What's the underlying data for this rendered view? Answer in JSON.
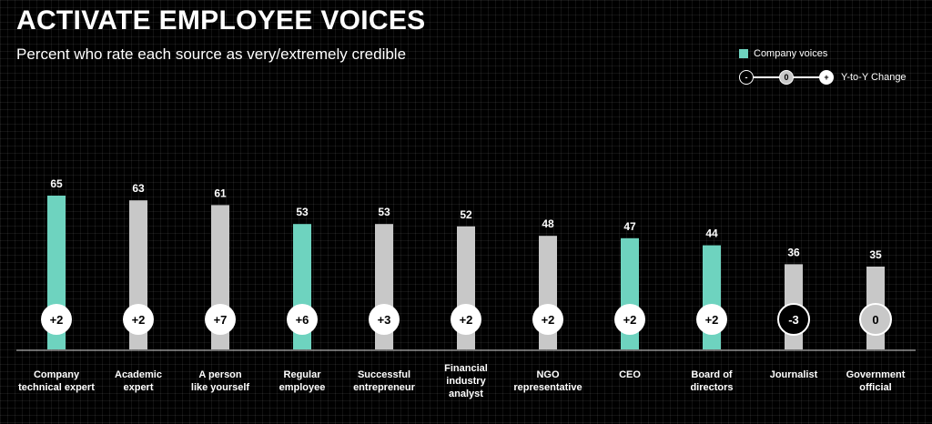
{
  "title": "ACTIVATE EMPLOYEE VOICES",
  "subtitle": "Percent who rate each source as very/extremely credible",
  "legend": {
    "company_label": "Company voices",
    "company_color": "#6ed3bf",
    "other_color": "#c8c8c8",
    "yoy_label": "Y-to-Y Change",
    "yoy_minus": "-",
    "yoy_zero": "0",
    "yoy_plus": "+"
  },
  "chart_data": {
    "type": "bar",
    "title": "ACTIVATE EMPLOYEE VOICES",
    "subtitle": "Percent who rate each source as very/extremely credible",
    "categories": [
      "Company\ntechnical expert",
      "Academic\nexpert",
      "A person\nlike yourself",
      "Regular\nemployee",
      "Successful\nentrepreneur",
      "Financial\nindustry\nanalyst",
      "NGO\nrepresentative",
      "CEO",
      "Board of\ndirectors",
      "Journalist",
      "Government\nofficial"
    ],
    "values": [
      65,
      63,
      61,
      53,
      53,
      52,
      48,
      47,
      44,
      36,
      35
    ],
    "value_labels": [
      "65",
      "63",
      "61",
      "53",
      "53",
      "52",
      "48",
      "47",
      "44",
      "36",
      "35"
    ],
    "yoy_change": [
      "+2",
      "+2",
      "+7",
      "+6",
      "+3",
      "+2",
      "+2",
      "+2",
      "+2",
      "-3",
      "0"
    ],
    "company_voice": [
      true,
      false,
      false,
      true,
      false,
      false,
      false,
      true,
      true,
      false,
      false
    ],
    "ylim": [
      0,
      65
    ],
    "grid": false
  }
}
